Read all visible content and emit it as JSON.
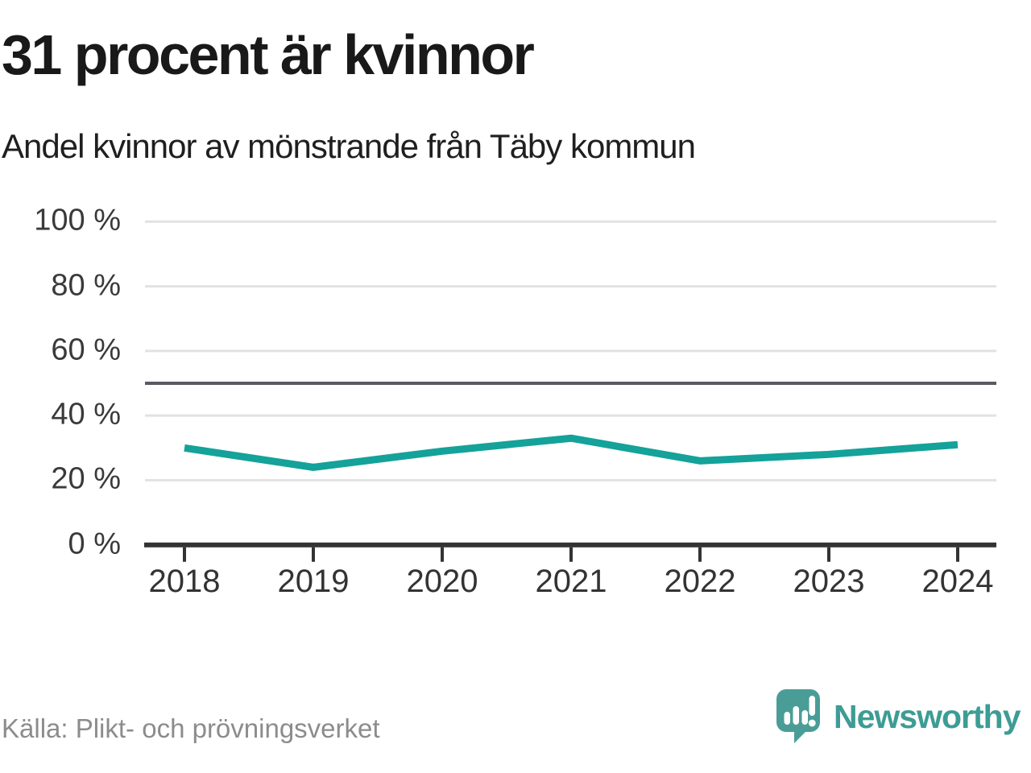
{
  "header": {
    "title": "31 procent är kvinnor",
    "subtitle": "Andel kvinnor av mönstrande från Täby kommun"
  },
  "footer": {
    "source": "Källa: Plikt- och prövningsverket",
    "brand_name": "Newsworthy"
  },
  "colors": {
    "line": "#14a29a",
    "gridline": "#e2e2e2",
    "reference_line": "#5a5a62",
    "axis": "#333333",
    "logo": "#4a9d97",
    "brand_text": "#3d9c95"
  },
  "chart_data": {
    "type": "line",
    "title": "31 procent är kvinnor",
    "subtitle": "Andel kvinnor av mönstrande från Täby kommun",
    "categories": [
      2018,
      2019,
      2020,
      2021,
      2022,
      2023,
      2024
    ],
    "values": [
      30,
      24,
      29,
      33,
      26,
      28,
      31
    ],
    "unit": "%",
    "ylim": [
      0,
      100
    ],
    "yticks": [
      0,
      20,
      40,
      60,
      80,
      100
    ],
    "ytick_label_suffix": " %",
    "reference_line_y": 50,
    "grid": "horizontal",
    "legend": "none",
    "source": "Källa: Plikt- och prövningsverket"
  }
}
